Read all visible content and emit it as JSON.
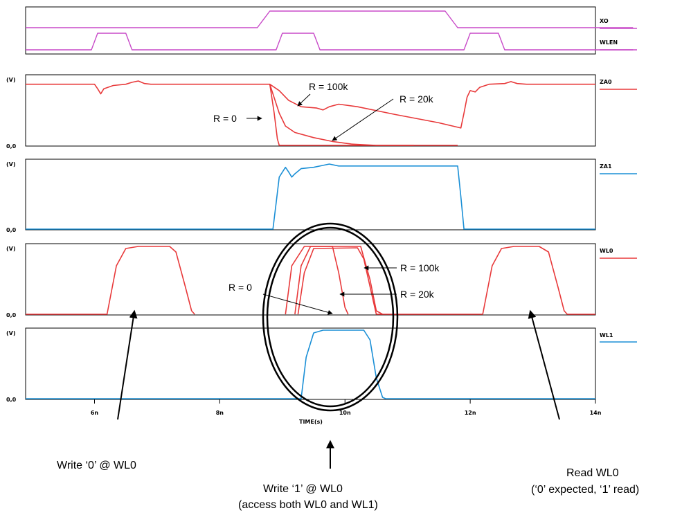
{
  "chart_data": {
    "type": "line",
    "x_unit_suffix": "n",
    "xlim": [
      4.9,
      14
    ],
    "xticks": [
      6,
      8,
      10,
      12,
      14
    ],
    "tick_labels": [
      "6n",
      "8n",
      "10n",
      "12n",
      "14n"
    ],
    "xlabel": "TIME(s)",
    "colors": {
      "red": "#e8393a",
      "blue": "#1a8fd6",
      "magenta": "#c84ac8",
      "axis": "#000000"
    },
    "digital_panel": {
      "series": [
        {
          "name": "XO",
          "color": "#c84ac8",
          "points": [
            [
              4.9,
              0
            ],
            [
              8.6,
              0
            ],
            [
              8.8,
              1
            ],
            [
              11.6,
              1
            ],
            [
              11.8,
              0
            ],
            [
              14.6,
              0
            ]
          ]
        },
        {
          "name": "WLEN",
          "color": "#c84ac8",
          "points": [
            [
              4.9,
              0
            ],
            [
              5.95,
              0
            ],
            [
              6.05,
              1
            ],
            [
              6.5,
              1
            ],
            [
              6.6,
              0
            ],
            [
              8.9,
              0
            ],
            [
              9.0,
              1
            ],
            [
              9.5,
              1
            ],
            [
              9.6,
              0
            ],
            [
              11.9,
              0
            ],
            [
              12.0,
              1
            ],
            [
              12.45,
              1
            ],
            [
              12.55,
              0
            ],
            [
              14.6,
              0
            ]
          ]
        }
      ]
    },
    "analog_panels": [
      {
        "name": "ZA0",
        "ylabel": "(V)",
        "ybottom_label": "0,0",
        "color": "#e8393a",
        "traces": [
          {
            "points": [
              [
                4.9,
                0.95
              ],
              [
                6.0,
                0.95
              ],
              [
                6.05,
                0.88
              ],
              [
                6.1,
                0.8
              ],
              [
                6.15,
                0.88
              ],
              [
                6.3,
                0.93
              ],
              [
                6.5,
                0.95
              ],
              [
                6.6,
                0.98
              ],
              [
                6.7,
                1.0
              ],
              [
                6.8,
                0.96
              ],
              [
                6.9,
                0.95
              ],
              [
                8.8,
                0.95
              ],
              [
                8.85,
                0.8
              ],
              [
                8.95,
                0.5
              ],
              [
                9.05,
                0.3
              ],
              [
                9.2,
                0.2
              ],
              [
                9.5,
                0.12
              ],
              [
                9.8,
                0.06
              ],
              [
                10.1,
                0.02
              ],
              [
                10.5,
                0.0
              ],
              [
                11.1,
                0.0
              ]
            ]
          },
          {
            "points": [
              [
                8.8,
                0.95
              ],
              [
                8.87,
                0.5
              ],
              [
                8.92,
                0.1
              ],
              [
                8.95,
                0.0
              ],
              [
                11.8,
                0.0
              ]
            ]
          },
          {
            "points": [
              [
                8.8,
                0.95
              ],
              [
                8.95,
                0.85
              ],
              [
                9.1,
                0.7
              ],
              [
                9.3,
                0.6
              ],
              [
                9.55,
                0.58
              ],
              [
                9.65,
                0.55
              ],
              [
                9.75,
                0.6
              ],
              [
                9.9,
                0.64
              ],
              [
                10.2,
                0.6
              ],
              [
                10.8,
                0.48
              ],
              [
                11.5,
                0.35
              ],
              [
                11.85,
                0.27
              ],
              [
                11.9,
                0.5
              ],
              [
                11.95,
                0.75
              ],
              [
                12.0,
                0.85
              ],
              [
                12.08,
                0.83
              ],
              [
                12.15,
                0.9
              ],
              [
                12.3,
                0.95
              ],
              [
                12.55,
                0.96
              ],
              [
                12.65,
                0.99
              ],
              [
                12.75,
                0.96
              ],
              [
                12.9,
                0.95
              ],
              [
                14,
                0.95
              ]
            ]
          }
        ]
      },
      {
        "name": "ZA1",
        "ylabel": "(V)",
        "ybottom_label": "0,0",
        "color": "#1a8fd6",
        "traces": [
          {
            "points": [
              [
                4.9,
                0
              ],
              [
                8.85,
                0
              ],
              [
                8.9,
                0.4
              ],
              [
                8.95,
                0.8
              ],
              [
                9.05,
                0.95
              ],
              [
                9.1,
                0.88
              ],
              [
                9.15,
                0.8
              ],
              [
                9.2,
                0.85
              ],
              [
                9.3,
                0.93
              ],
              [
                9.5,
                0.95
              ],
              [
                9.65,
                0.98
              ],
              [
                9.75,
                1.0
              ],
              [
                9.9,
                0.97
              ],
              [
                10.1,
                0.97
              ],
              [
                11.8,
                0.97
              ],
              [
                11.85,
                0.5
              ],
              [
                11.9,
                0.0
              ],
              [
                14,
                0
              ]
            ]
          }
        ]
      },
      {
        "name": "WL0",
        "ylabel": "(V)",
        "ybottom_label": "0,0",
        "color": "#e8393a",
        "traces": [
          {
            "points": [
              [
                4.9,
                0
              ],
              [
                6.2,
                0
              ],
              [
                6.35,
                0.7
              ],
              [
                6.5,
                0.95
              ],
              [
                6.7,
                0.98
              ],
              [
                7.2,
                0.98
              ],
              [
                7.3,
                0.9
              ],
              [
                7.45,
                0.4
              ],
              [
                7.55,
                0.05
              ],
              [
                7.6,
                0
              ]
            ]
          },
          {
            "points": [
              [
                9.05,
                0
              ],
              [
                9.15,
                0.7
              ],
              [
                9.35,
                0.98
              ],
              [
                9.8,
                0.98
              ],
              [
                9.9,
                0.6
              ],
              [
                10.0,
                0.1
              ],
              [
                10.05,
                0
              ]
            ]
          },
          {
            "points": [
              [
                9.2,
                0
              ],
              [
                9.3,
                0.7
              ],
              [
                9.45,
                0.98
              ],
              [
                10.25,
                0.98
              ],
              [
                10.4,
                0.5
              ],
              [
                10.5,
                0.05
              ],
              [
                10.6,
                0
              ]
            ]
          },
          {
            "points": [
              [
                9.25,
                0
              ],
              [
                9.35,
                0.6
              ],
              [
                9.5,
                0.95
              ],
              [
                10.2,
                0.96
              ],
              [
                10.3,
                0.8
              ],
              [
                10.45,
                0.2
              ],
              [
                10.5,
                0
              ],
              [
                12.2,
                0
              ]
            ]
          },
          {
            "points": [
              [
                12.2,
                0
              ],
              [
                12.35,
                0.7
              ],
              [
                12.5,
                0.95
              ],
              [
                12.7,
                0.98
              ],
              [
                13.1,
                0.98
              ],
              [
                13.25,
                0.9
              ],
              [
                13.4,
                0.4
              ],
              [
                13.5,
                0.05
              ],
              [
                13.55,
                0
              ],
              [
                14,
                0
              ]
            ]
          }
        ]
      },
      {
        "name": "WL1",
        "ylabel": "(V)",
        "ybottom_label": "0,0",
        "color": "#1a8fd6",
        "traces": [
          {
            "points": [
              [
                4.9,
                0
              ],
              [
                9.3,
                0
              ],
              [
                9.38,
                0.6
              ],
              [
                9.5,
                0.95
              ],
              [
                9.65,
                0.99
              ],
              [
                10.3,
                0.99
              ],
              [
                10.4,
                0.85
              ],
              [
                10.5,
                0.3
              ],
              [
                10.6,
                0.02
              ],
              [
                10.65,
                0
              ],
              [
                14,
                0
              ]
            ]
          }
        ]
      }
    ],
    "annotations": [
      {
        "text": "R = 100k",
        "panel": "ZA0"
      },
      {
        "text": "R = 20k",
        "panel": "ZA0"
      },
      {
        "text": "R = 0",
        "panel": "ZA0"
      },
      {
        "text": "R = 100k",
        "panel": "WL0"
      },
      {
        "text": "R = 20k",
        "panel": "WL0"
      },
      {
        "text": "R = 0",
        "panel": "WL0"
      }
    ],
    "captions": {
      "left": [
        "Write ‘0’ @ WL0"
      ],
      "center": [
        "Write ‘1’ @ WL0",
        "(access both WL0 and WL1)"
      ],
      "right": [
        "Read WL0",
        "(‘0’ expected, ‘1’ read)"
      ]
    }
  }
}
